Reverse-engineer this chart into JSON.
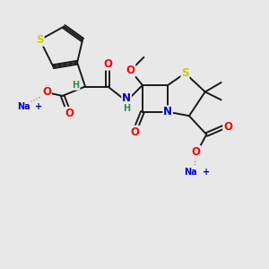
{
  "background_color": "#e8e8e8",
  "bond_color": "#1a1a1a",
  "S_color": "#cccc00",
  "O_color": "#ff0000",
  "N_color": "#0000cc",
  "Na_color": "#0000cc",
  "H_color": "#2e8b57",
  "figsize": [
    3.0,
    3.0
  ],
  "dpi": 100,
  "xlim": [
    0,
    10
  ],
  "ylim": [
    0,
    10
  ]
}
